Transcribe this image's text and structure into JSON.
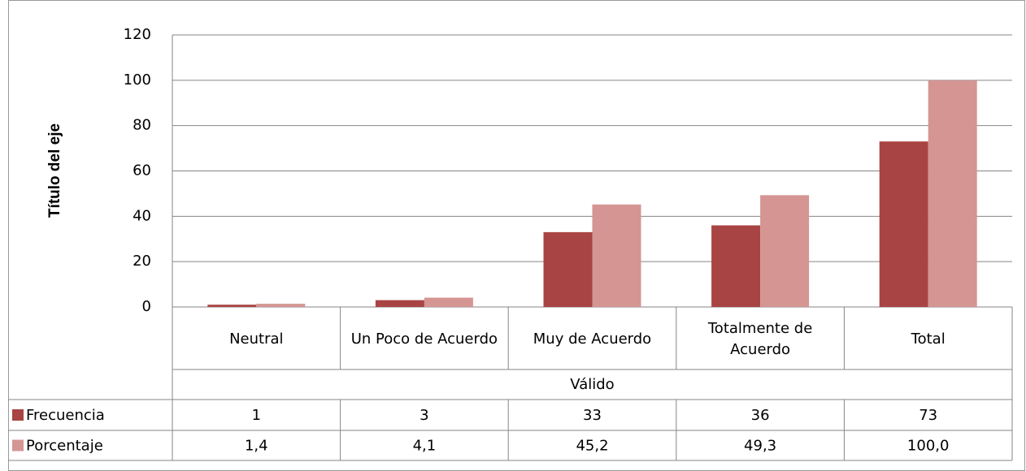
{
  "chart_data": {
    "type": "bar",
    "y_axis_title": "Título del eje",
    "categories": [
      "Neutral",
      "Un Poco de Acuerdo",
      "Muy de Acuerdo",
      "Totalmente de Acuerdo",
      "Total"
    ],
    "category_group": "Válido",
    "series": [
      {
        "name": "Frecuencia",
        "color": "#a84443",
        "values": [
          1,
          3,
          33,
          36,
          73
        ]
      },
      {
        "name": "Porcentaje",
        "color": "#d49593",
        "values": [
          1.4,
          4.1,
          45.2,
          49.3,
          100.0
        ],
        "value_labels": [
          "1,4",
          "4,1",
          "45,2",
          "49,3",
          "100,0"
        ]
      }
    ],
    "ylim": [
      0,
      120
    ],
    "yticks": [
      0,
      20,
      40,
      60,
      80,
      100,
      120
    ],
    "grid": true,
    "data_table": true
  }
}
